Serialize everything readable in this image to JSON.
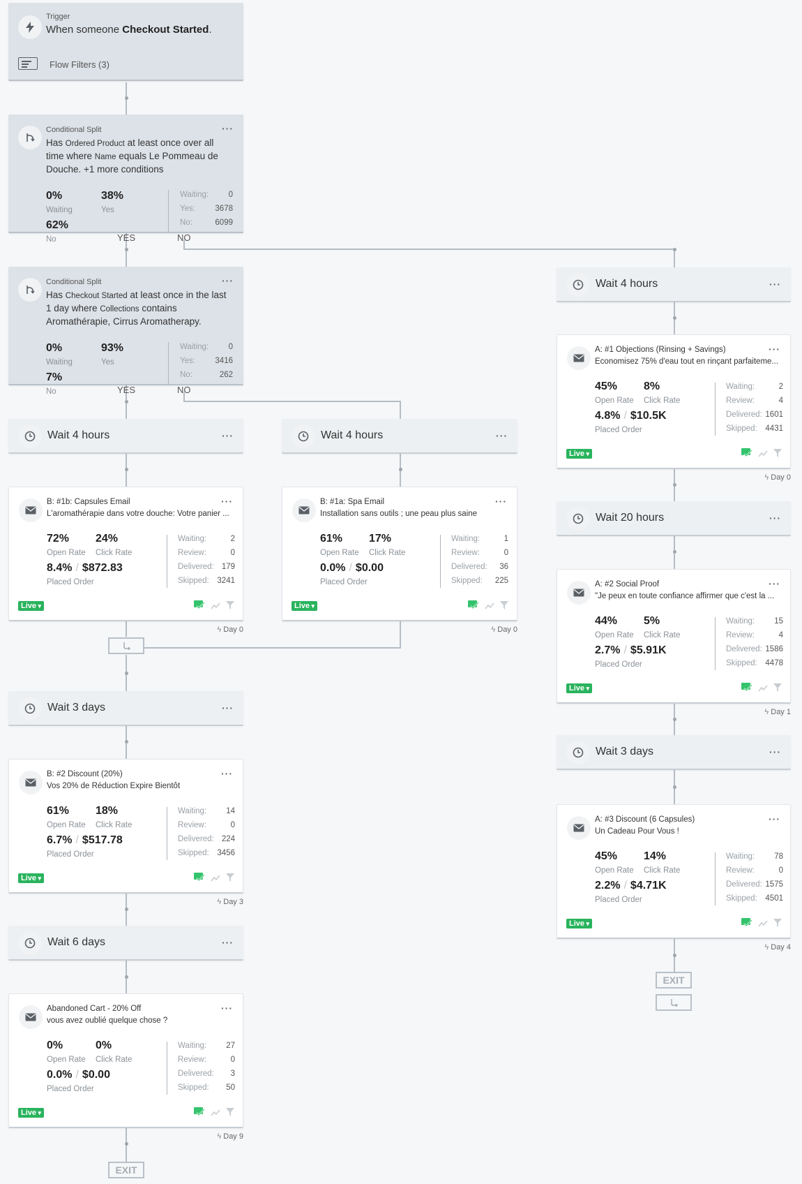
{
  "trigger": {
    "label": "Trigger",
    "text_prefix": "When someone",
    "event": "Checkout Started",
    "text_suffix": ".",
    "filters": "Flow Filters (3)"
  },
  "split1": {
    "label": "Conditional Split",
    "c1": "Has",
    "c2": "Ordered Product",
    "c3": "at least once over all time where",
    "c4": "Name",
    "c5": "equals Le Pommeau de Douche. +1 more conditions",
    "waiting_pct": "0%",
    "waiting_label": "Waiting",
    "yes_pct": "38%",
    "yes_label": "Yes",
    "no_pct": "62%",
    "no_label": "No",
    "stats": [
      [
        "Waiting:",
        "0"
      ],
      [
        "Yes:",
        "3678"
      ],
      [
        "No:",
        "6099"
      ]
    ],
    "yes_branch": "YES",
    "no_branch": "NO"
  },
  "split2": {
    "label": "Conditional Split",
    "c1": "Has",
    "c2": "Checkout Started",
    "c3": "at least once in the last 1 day where",
    "c4": "Collections",
    "c5": "contains Aromathérapie, Cirrus Aromatherapy.",
    "waiting_pct": "0%",
    "waiting_label": "Waiting",
    "yes_pct": "93%",
    "yes_label": "Yes",
    "no_pct": "7%",
    "no_label": "No",
    "stats": [
      [
        "Waiting:",
        "0"
      ],
      [
        "Yes:",
        "3416"
      ],
      [
        "No:",
        "262"
      ]
    ],
    "yes_branch": "YES",
    "no_branch": "NO"
  },
  "waits": {
    "w_left1": "Wait 4 hours",
    "w_mid": "Wait 4 hours",
    "w_right1": "Wait 4 hours",
    "w_right2": "Wait 20 hours",
    "w_right3": "Wait 3 days",
    "w_left2": "Wait 3 days",
    "w_left3": "Wait 6 days"
  },
  "labels": {
    "open_rate": "Open Rate",
    "click_rate": "Click Rate",
    "placed_order": "Placed Order",
    "waiting": "Waiting:",
    "review": "Review:",
    "delivered": "Delivered:",
    "skipped": "Skipped:",
    "live": "Live",
    "exit": "EXIT"
  },
  "emails": {
    "b1b": {
      "title": "B: #1b: Capsules Email",
      "subject": "L'aromathérapie dans votre douche: Votre panier ...",
      "open": "72%",
      "click": "24%",
      "po_rate": "8.4%",
      "po_value": "$872.83",
      "waiting": "2",
      "review": "0",
      "delivered": "179",
      "skipped": "3241",
      "day": "Day 0"
    },
    "b1a": {
      "title": "B: #1a: Spa Email",
      "subject": "Installation sans outils ; une peau plus saine",
      "open": "61%",
      "click": "17%",
      "po_rate": "0.0%",
      "po_value": "$0.00",
      "waiting": "1",
      "review": "0",
      "delivered": "36",
      "skipped": "225",
      "day": "Day 0"
    },
    "a1": {
      "title": "A: #1 Objections (Rinsing + Savings)",
      "subject": "Economisez 75% d'eau tout en rinçant parfaiteme...",
      "open": "45%",
      "click": "8%",
      "po_rate": "4.8%",
      "po_value": "$10.5K",
      "waiting": "2",
      "review": "4",
      "delivered": "1601",
      "skipped": "4431",
      "day": "Day 0"
    },
    "a2": {
      "title": "A: #2 Social Proof",
      "subject": "\"Je peux en toute confiance affirmer que c'est la ...",
      "open": "44%",
      "click": "5%",
      "po_rate": "2.7%",
      "po_value": "$5.91K",
      "waiting": "15",
      "review": "4",
      "delivered": "1586",
      "skipped": "4478",
      "day": "Day 1"
    },
    "a3": {
      "title": "A: #3 Discount (6 Capsules)",
      "subject": "Un Cadeau Pour Vous !",
      "open": "45%",
      "click": "14%",
      "po_rate": "2.2%",
      "po_value": "$4.71K",
      "waiting": "78",
      "review": "0",
      "delivered": "1575",
      "skipped": "4501",
      "day": "Day 4"
    },
    "b2": {
      "title": "B: #2 Discount (20%)",
      "subject": "Vos 20% de Réduction Expire Bientôt",
      "open": "61%",
      "click": "18%",
      "po_rate": "6.7%",
      "po_value": "$517.78",
      "waiting": "14",
      "review": "0",
      "delivered": "224",
      "skipped": "3456",
      "day": "Day 3"
    },
    "ac": {
      "title": "Abandoned Cart - 20% Off",
      "subject": "vous avez oublié quelque chose ?",
      "open": "0%",
      "click": "0%",
      "po_rate": "0.0%",
      "po_value": "$0.00",
      "waiting": "27",
      "review": "0",
      "delivered": "3",
      "skipped": "50",
      "day": "Day 9"
    }
  },
  "colors": {
    "live": "#29b35d",
    "connector": "#b5bcc4",
    "split_bg": "#dde2e8"
  }
}
